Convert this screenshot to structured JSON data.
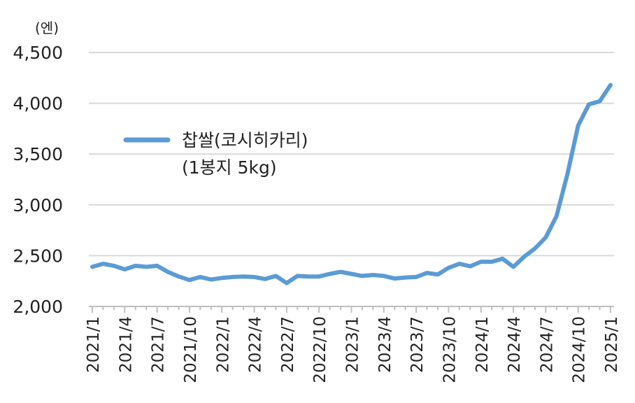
{
  "chart_data": {
    "type": "line",
    "y_unit_label": "(엔)",
    "ylim": [
      2000,
      4500
    ],
    "yticks": [
      "2,000",
      "2,500",
      "3,000",
      "3,500",
      "4,000",
      "4,500"
    ],
    "ytick_values": [
      2000,
      2500,
      3000,
      3500,
      4000,
      4500
    ],
    "grid": true,
    "legend_position": "upper-left",
    "xtick_labels": [
      "2021/1",
      "2021/4",
      "2021/7",
      "2021/10",
      "2022/1",
      "2022/4",
      "2022/7",
      "2022/10",
      "2023/1",
      "2023/4",
      "2023/7",
      "2023/10",
      "2024/1",
      "2024/4",
      "2024/7",
      "2024/10",
      "2025/1"
    ],
    "x": [
      "2021/1",
      "2021/2",
      "2021/3",
      "2021/4",
      "2021/5",
      "2021/6",
      "2021/7",
      "2021/8",
      "2021/9",
      "2021/10",
      "2021/11",
      "2021/12",
      "2022/1",
      "2022/2",
      "2022/3",
      "2022/4",
      "2022/5",
      "2022/6",
      "2022/7",
      "2022/8",
      "2022/9",
      "2022/10",
      "2022/11",
      "2022/12",
      "2023/1",
      "2023/2",
      "2023/3",
      "2023/4",
      "2023/5",
      "2023/6",
      "2023/7",
      "2023/8",
      "2023/9",
      "2023/10",
      "2023/11",
      "2023/12",
      "2024/1",
      "2024/2",
      "2024/3",
      "2024/4",
      "2024/5",
      "2024/6",
      "2024/7",
      "2024/8",
      "2024/9",
      "2024/10",
      "2024/11",
      "2024/12",
      "2025/1"
    ],
    "series": [
      {
        "name_line1": "찹쌀(코시히카리)",
        "name_line2": "(1봉지 5kg)",
        "color": "#5b9bd5",
        "values": [
          2390,
          2420,
          2400,
          2365,
          2400,
          2390,
          2400,
          2340,
          2295,
          2260,
          2290,
          2265,
          2280,
          2290,
          2295,
          2290,
          2270,
          2300,
          2230,
          2300,
          2295,
          2295,
          2320,
          2340,
          2320,
          2300,
          2310,
          2300,
          2275,
          2285,
          2290,
          2330,
          2315,
          2380,
          2420,
          2395,
          2440,
          2440,
          2470,
          2390,
          2490,
          2570,
          2680,
          2890,
          3300,
          3780,
          3990,
          4020,
          4180
        ]
      }
    ]
  }
}
